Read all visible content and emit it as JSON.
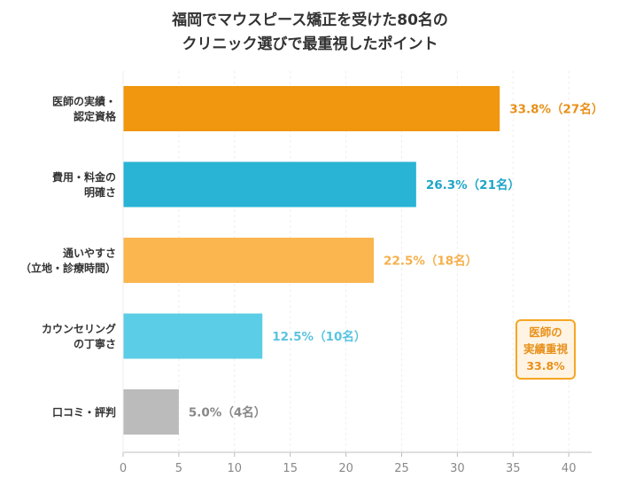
{
  "chart_data": {
    "type": "bar",
    "orientation": "horizontal",
    "title_lines": [
      "福岡でマウスピース矯正を受けた80名の",
      "クリニック選びで最重視したポイント"
    ],
    "xlabel": "",
    "ylabel": "",
    "xlim": [
      0,
      42
    ],
    "xticks": [
      0,
      5,
      10,
      15,
      20,
      25,
      30,
      35,
      40
    ],
    "grid": true,
    "categories": [
      [
        "医師の実績・",
        "認定資格"
      ],
      [
        "費用・料金の",
        "明確さ"
      ],
      [
        "通いやすさ",
        "（立地・診療時間）"
      ],
      [
        "カウンセリング",
        "の丁寧さ"
      ],
      [
        "口コミ・評判"
      ]
    ],
    "values": [
      33.8,
      26.3,
      22.5,
      12.5,
      5.0
    ],
    "counts": [
      27,
      21,
      18,
      10,
      4
    ],
    "value_labels": [
      "33.8%（27名）",
      "26.3%（21名）",
      "22.5%（18名）",
      "12.5%（10名）",
      "5.0%（4名）"
    ],
    "colors": [
      "#F0960F",
      "#29B3D4",
      "#FBB64F",
      "#5BCDE6",
      "#BBBBBB"
    ],
    "label_colors": [
      "#E8901A",
      "#1FA5C9",
      "#F5B04C",
      "#5BC4E0",
      "#888888"
    ],
    "annotation": {
      "lines": [
        "医師の",
        "実績重視",
        "33.8%"
      ],
      "position": "bottom-right"
    }
  }
}
